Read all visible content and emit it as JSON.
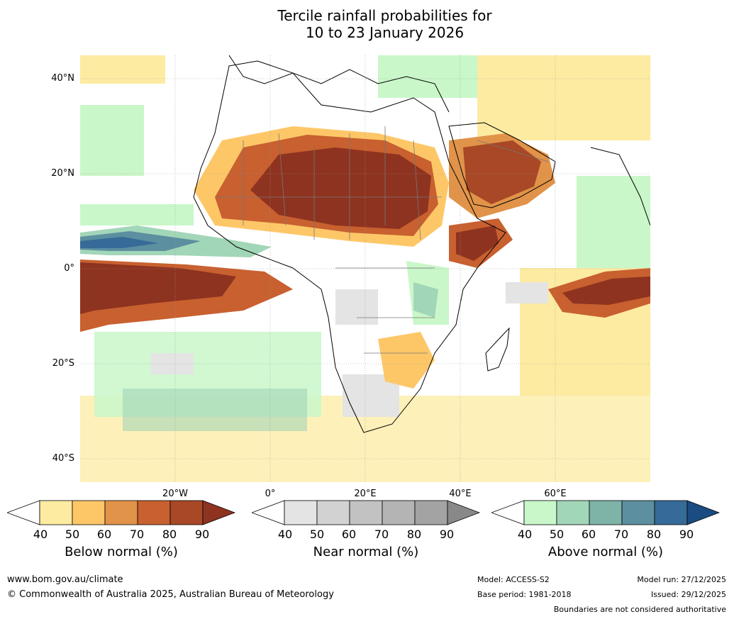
{
  "title_line1": "Tercile rainfall probabilities for",
  "title_line2": "10 to 23 January 2026",
  "map": {
    "lat_labels": [
      "40°N",
      "20°N",
      "0°",
      "20°S",
      "40°S"
    ],
    "lon_labels": [
      "20°W",
      "0°",
      "20°E",
      "40°E",
      "60°E"
    ]
  },
  "colorbars": [
    {
      "label": "Below normal (%)",
      "ticks": [
        "40",
        "50",
        "60",
        "70",
        "80",
        "90"
      ],
      "colors": [
        "#ffffff",
        "#fdeba2",
        "#fdc768",
        "#e19349",
        "#c8602f",
        "#a84826",
        "#8e3320"
      ]
    },
    {
      "label": "Near normal (%)",
      "ticks": [
        "40",
        "50",
        "60",
        "70",
        "80",
        "90"
      ],
      "colors": [
        "#ffffff",
        "#e4e4e4",
        "#d2d2d2",
        "#c2c2c2",
        "#b4b4b4",
        "#a3a3a3",
        "#888888"
      ]
    },
    {
      "label": "Above normal (%)",
      "ticks": [
        "40",
        "50",
        "60",
        "70",
        "80",
        "90"
      ],
      "colors": [
        "#ffffff",
        "#c9f7c9",
        "#a2d6b8",
        "#7eb3a8",
        "#5c8f9f",
        "#366a98",
        "#1a4c81"
      ]
    }
  ],
  "footer": {
    "website": "www.bom.gov.au/climate",
    "copyright": "© Commonwealth of Australia 2025, Australian Bureau of Meteorology",
    "model": "Model: ACCESS-S2",
    "base_period": "Base period: 1981-2018",
    "model_run": "Model run: 27/12/2025",
    "issued": "Issued: 29/12/2025",
    "disclaimer": "Boundaries are not considered authoritative"
  }
}
